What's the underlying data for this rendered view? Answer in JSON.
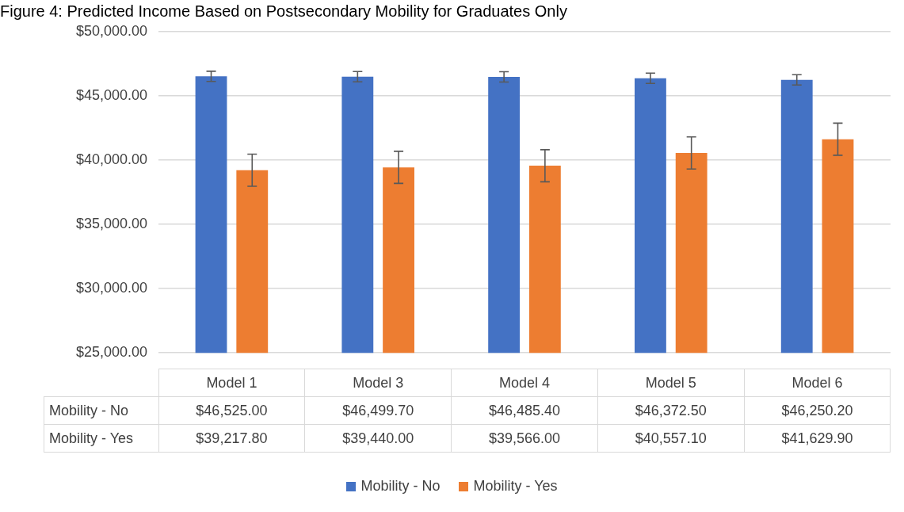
{
  "chart_data": {
    "type": "bar",
    "title": "Figure 4: Predicted Income Based on Postsecondary Mobility for Graduates Only",
    "categories": [
      "Model 1",
      "Model 3",
      "Model 4",
      "Model 5",
      "Model 6"
    ],
    "series": [
      {
        "name": "Mobility - No",
        "color": "#4472c4",
        "values": [
          46525.0,
          46499.7,
          46485.4,
          46372.5,
          46250.2
        ],
        "errors": [
          400,
          400,
          400,
          400,
          400
        ],
        "value_labels": [
          "$46,525.00",
          "$46,499.70",
          "$46,485.40",
          "$46,372.50",
          "$46,250.20"
        ]
      },
      {
        "name": "Mobility - Yes",
        "color": "#ed7d31",
        "values": [
          39217.8,
          39440.0,
          39566.0,
          40557.1,
          41629.9
        ],
        "errors": [
          1250,
          1250,
          1250,
          1250,
          1250
        ],
        "value_labels": [
          "$39,217.80",
          "$39,440.00",
          "$39,566.00",
          "$40,557.10",
          "$41,629.90"
        ]
      }
    ],
    "ylim": [
      25000,
      50000
    ],
    "yticks": [
      {
        "value": 25000,
        "label": "$25,000.00"
      },
      {
        "value": 30000,
        "label": "$30,000.00"
      },
      {
        "value": 35000,
        "label": "$35,000.00"
      },
      {
        "value": 40000,
        "label": "$40,000.00"
      },
      {
        "value": 45000,
        "label": "$45,000.00"
      },
      {
        "value": 50000,
        "label": "$50,000.00"
      }
    ],
    "grid": "y",
    "legend": "bottom"
  }
}
